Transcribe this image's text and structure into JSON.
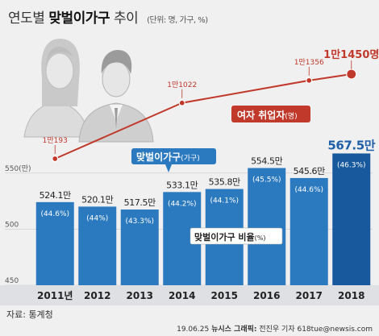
{
  "header": {
    "title_prefix": "연도별",
    "title_highlight": "맞벌이가구",
    "title_suffix": "추이",
    "unit_note": "(단위: 명, 가구, %)"
  },
  "chart_data": {
    "type": "bar",
    "categories": [
      "2011년",
      "2012",
      "2013",
      "2014",
      "2015",
      "2016",
      "2017",
      "2018"
    ],
    "ylim": [
      450,
      575
    ],
    "yticks": [
      {
        "label": "550(만)",
        "value": 550
      },
      {
        "label": "500",
        "value": 500
      },
      {
        "label": "450",
        "value": 450
      }
    ],
    "bars": {
      "name": "맞벌이가구(가구)",
      "legend_main": "맞벌이가구",
      "legend_unit": "(가구)",
      "values": [
        524.1,
        520.1,
        517.5,
        533.1,
        535.8,
        554.5,
        545.6,
        567.5
      ],
      "value_labels": [
        "524.1만",
        "520.1만",
        "517.5만",
        "533.1만",
        "535.8만",
        "554.5만",
        "545.6만",
        "567.5만"
      ]
    },
    "ratio": {
      "name": "맞벌이가구 비율(%)",
      "legend_main": "맞벌이가구 비율",
      "legend_unit": "(%)",
      "values": [
        44.6,
        44.0,
        43.3,
        44.2,
        44.1,
        45.5,
        44.6,
        46.3
      ],
      "labels": [
        "(44.6%)",
        "(44%)",
        "(43.3%)",
        "(44.2%)",
        "(44.1%)",
        "(45.5%)",
        "(44.6%)",
        "(46.3%)"
      ]
    },
    "line": {
      "name": "여자 취업자(명)",
      "legend_main": "여자 취업자",
      "legend_unit": "(명)",
      "points": [
        {
          "year": "2011년",
          "value": 10193,
          "label": "1만193"
        },
        {
          "year": "2014",
          "value": 11022,
          "label": "1만1022"
        },
        {
          "year": "2017",
          "value": 11356,
          "label": "1만1356"
        },
        {
          "year": "2018",
          "value": 11450,
          "label": "1만1450명"
        }
      ]
    },
    "colors": {
      "bar": "#2b79bf",
      "bar_last": "#17599c",
      "line": "#c0392b",
      "highlight_text": "#1e5fa8",
      "line_label": "#c0392b"
    }
  },
  "source": "자료: 통계청",
  "footer": {
    "date": "19.06.25",
    "agency": "뉴시스 그래픽:",
    "author": "전진우 기자 618tue@newsis.com"
  }
}
